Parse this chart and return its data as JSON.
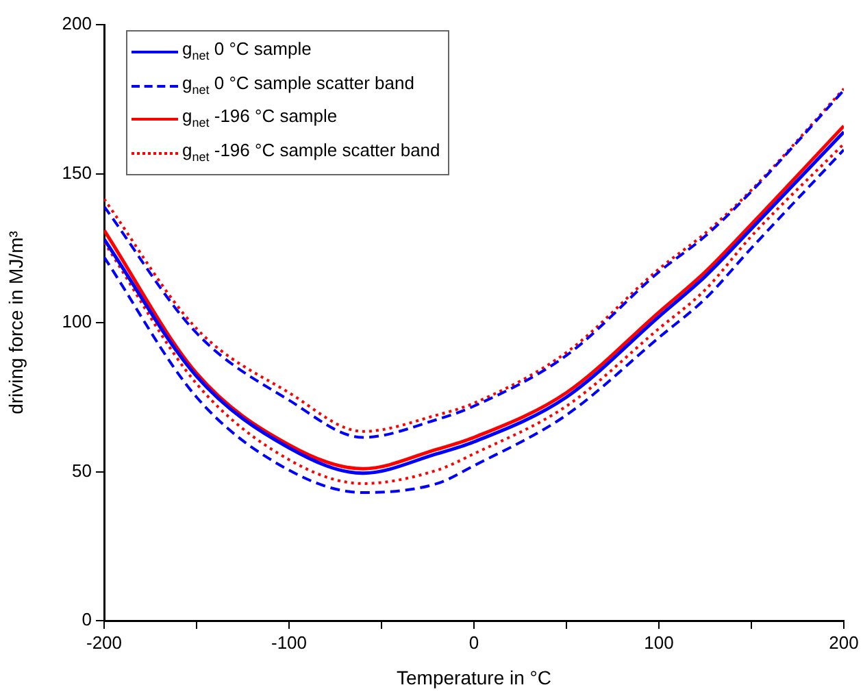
{
  "chart_data": {
    "type": "line",
    "xlabel": "Temperature in °C",
    "ylabel": "driving force in MJ/m³",
    "x": [
      -200,
      -150,
      -100,
      -60,
      -20,
      0,
      50,
      100,
      125,
      150,
      200
    ],
    "xlim": [
      -200,
      200
    ],
    "xticks": [
      -200,
      {
        "value": -150,
        "label": null
      },
      -100,
      {
        "value": -50,
        "label": null
      },
      0,
      {
        "value": 50,
        "label": null
      },
      100,
      {
        "value": 150,
        "label": null
      },
      200
    ],
    "ylim": [
      0,
      200
    ],
    "yticks": [
      0,
      50,
      100,
      150,
      200
    ],
    "grid": false,
    "legend": "top left",
    "marker": "none",
    "series": [
      {
        "name": "g$_{net}$ 0 °C sample",
        "color": "#0000ff",
        "line_style": "solid",
        "values": [
          128,
          82,
          58,
          49.5,
          56,
          60,
          75,
          102,
          115.5,
          131.5,
          164
        ]
      },
      {
        "name": "g$_{net}$ 0 °C sample scatter band",
        "color": "#0000ff",
        "line_style": "dashed",
        "values": [
          139,
          96.5,
          74,
          61.5,
          67.5,
          72,
          89,
          117,
          129,
          144,
          178
        ]
      },
      {
        "color": "#0000ff",
        "line_style": "dashed",
        "values": [
          122,
          75,
          50.5,
          43,
          46,
          52,
          69,
          95,
          108,
          125,
          158
        ]
      },
      {
        "name": "g$_{net}$ -196 °C sample",
        "color": "#ff0000",
        "line_style": "solid",
        "values": [
          131,
          83,
          59,
          51,
          57.5,
          61.5,
          76.5,
          103.5,
          117,
          133,
          166
        ]
      },
      {
        "name": "g$_{net}$ -196 °C sample scatter band",
        "color": "#ff0000",
        "line_style": "dotted",
        "values": [
          141.5,
          98,
          76.5,
          63.5,
          69,
          73,
          90,
          118,
          130,
          144.5,
          178.5
        ]
      },
      {
        "color": "#ff0000",
        "line_style": "dotted",
        "values": [
          127,
          79.5,
          54,
          46,
          50.5,
          56,
          72,
          98,
          111,
          129,
          160
        ]
      }
    ]
  }
}
